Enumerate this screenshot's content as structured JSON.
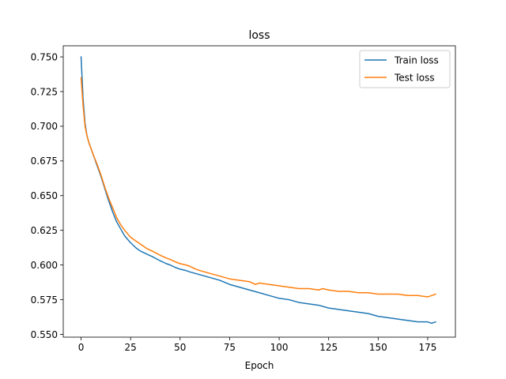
{
  "chart_data": {
    "type": "line",
    "title": "loss",
    "xlabel": "Epoch",
    "ylabel": "",
    "xlim": [
      -9,
      189
    ],
    "ylim": [
      0.548,
      0.758
    ],
    "xticks": [
      0,
      25,
      50,
      75,
      100,
      125,
      150,
      175
    ],
    "yticks": [
      0.55,
      0.575,
      0.6,
      0.625,
      0.65,
      0.675,
      0.7,
      0.725,
      0.75
    ],
    "xtick_labels": [
      "0",
      "25",
      "50",
      "75",
      "100",
      "125",
      "150",
      "175"
    ],
    "ytick_labels": [
      "0.550",
      "0.575",
      "0.600",
      "0.625",
      "0.650",
      "0.675",
      "0.700",
      "0.725",
      "0.750"
    ],
    "grid": false,
    "legend_position": "top-right",
    "series": [
      {
        "name": "Train loss",
        "color": "#1f77b4",
        "x": [
          0,
          1,
          2,
          3,
          4,
          5,
          6,
          8,
          10,
          12,
          14,
          16,
          18,
          20,
          22,
          25,
          28,
          30,
          33,
          36,
          40,
          43,
          45,
          48,
          50,
          53,
          55,
          60,
          65,
          70,
          75,
          80,
          85,
          90,
          95,
          100,
          105,
          110,
          115,
          120,
          125,
          130,
          135,
          140,
          145,
          150,
          155,
          160,
          165,
          170,
          175,
          177,
          179
        ],
        "y": [
          0.75,
          0.72,
          0.702,
          0.693,
          0.688,
          0.684,
          0.68,
          0.672,
          0.664,
          0.655,
          0.646,
          0.638,
          0.631,
          0.626,
          0.621,
          0.616,
          0.612,
          0.61,
          0.608,
          0.606,
          0.603,
          0.601,
          0.6,
          0.598,
          0.597,
          0.596,
          0.595,
          0.593,
          0.591,
          0.589,
          0.586,
          0.584,
          0.582,
          0.58,
          0.578,
          0.576,
          0.575,
          0.573,
          0.572,
          0.571,
          0.569,
          0.568,
          0.567,
          0.566,
          0.565,
          0.563,
          0.562,
          0.561,
          0.56,
          0.559,
          0.559,
          0.558,
          0.559
        ]
      },
      {
        "name": "Test loss",
        "color": "#ff7f0e",
        "x": [
          0,
          1,
          2,
          3,
          4,
          5,
          6,
          8,
          10,
          12,
          14,
          16,
          18,
          20,
          22,
          25,
          28,
          30,
          33,
          36,
          40,
          43,
          45,
          48,
          50,
          53,
          55,
          58,
          60,
          65,
          70,
          75,
          80,
          85,
          88,
          90,
          95,
          100,
          105,
          110,
          115,
          120,
          122,
          125,
          130,
          135,
          140,
          145,
          150,
          155,
          160,
          165,
          170,
          175,
          177,
          179
        ],
        "y": [
          0.735,
          0.715,
          0.7,
          0.693,
          0.688,
          0.684,
          0.68,
          0.673,
          0.665,
          0.656,
          0.648,
          0.641,
          0.634,
          0.629,
          0.625,
          0.62,
          0.617,
          0.615,
          0.612,
          0.61,
          0.607,
          0.605,
          0.604,
          0.602,
          0.601,
          0.6,
          0.599,
          0.597,
          0.596,
          0.594,
          0.592,
          0.59,
          0.589,
          0.588,
          0.586,
          0.587,
          0.586,
          0.585,
          0.584,
          0.583,
          0.583,
          0.582,
          0.583,
          0.582,
          0.581,
          0.581,
          0.58,
          0.58,
          0.579,
          0.579,
          0.579,
          0.578,
          0.578,
          0.577,
          0.578,
          0.579
        ]
      }
    ]
  }
}
